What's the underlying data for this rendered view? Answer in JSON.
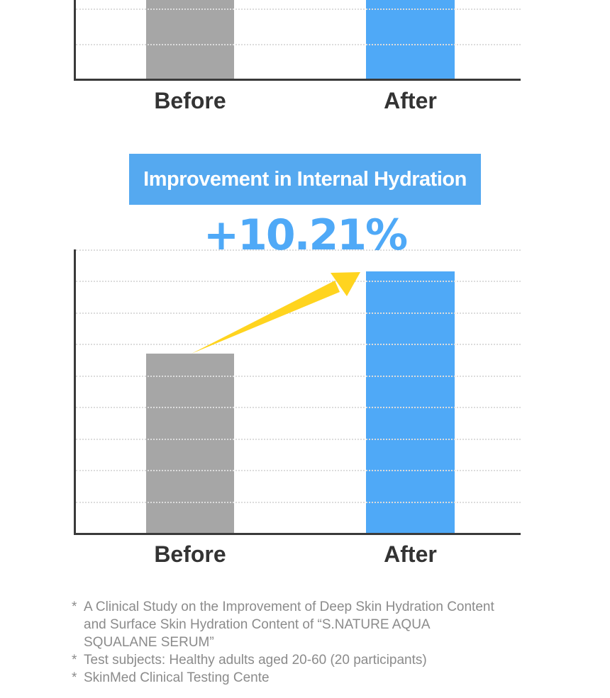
{
  "colors": {
    "accent_blue": "#4FA9F7",
    "banner_blue": "#55A9F0",
    "bar_gray": "#A6A6A6",
    "axis": "#3A3A3A",
    "gridline": "#DCDCDC",
    "arrow_yellow": "#FFD41F",
    "label_dark": "#333333",
    "footnote_gray": "#8B8B8B"
  },
  "chart_data": [
    {
      "type": "bar",
      "title": "",
      "categories": [
        "Before",
        "After"
      ],
      "values": [
        null,
        null
      ],
      "bar_colors": [
        "#A6A6A6",
        "#4FA9F7"
      ],
      "grid": true,
      "legend": false,
      "note": "Chart cropped by top edge of image; only lower portions of both bars are visible, no axis tick labels shown."
    },
    {
      "type": "bar",
      "title": "Improvement in Internal Hydration",
      "annotation": "+10.21%",
      "categories": [
        "Before",
        "After"
      ],
      "values": [
        5.7,
        8.3
      ],
      "ylim": [
        0,
        9
      ],
      "value_units": "relative gridline units (no numeric axis labels shown; heights estimated from 9 gridline intervals)",
      "bar_colors": [
        "#A6A6A6",
        "#4FA9F7"
      ],
      "grid": true,
      "legend": false,
      "annotation_arrow": "yellow arrow from top of Before bar to top of After bar"
    }
  ],
  "footnotes": {
    "items": [
      {
        "marker": "*",
        "lines": [
          "A Clinical Study on the Improvement of Deep Skin Hydration Content",
          "and Surface Skin Hydration Content of “S.NATURE AQUA SQUALANE SERUM”"
        ]
      },
      {
        "marker": "*",
        "lines": [
          "Test subjects: Healthy adults aged 20-60 (20 participants)"
        ]
      },
      {
        "marker": "*",
        "lines": [
          "SkinMed Clinical Testing Cente"
        ]
      }
    ]
  }
}
